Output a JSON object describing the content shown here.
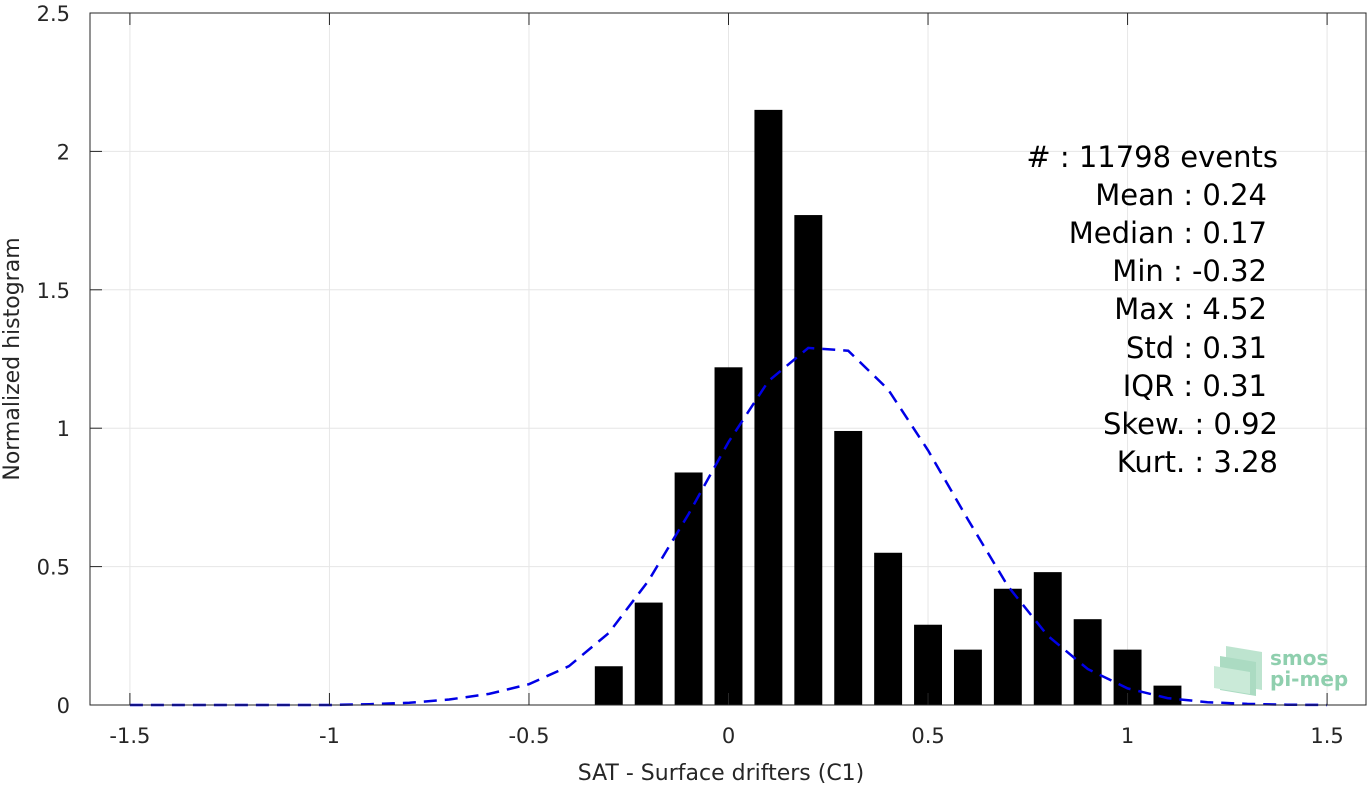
{
  "colors": {
    "bar": "#000000",
    "fit_line": "#0000e6",
    "grid": "#e6e6e6",
    "axis": "#262626",
    "logo": "#8fcfae"
  },
  "chart_data": {
    "type": "bar",
    "xlabel": "SAT - Surface drifters (C1)",
    "ylabel": "Normalized histogram",
    "xlim": [
      -1.6,
      1.6
    ],
    "ylim": [
      0,
      2.5
    ],
    "grid": true,
    "x_ticks": [
      -1.5,
      -1,
      -0.5,
      0,
      0.5,
      1,
      1.5
    ],
    "x_tick_labels": [
      "-1.5",
      "-1",
      "-0.5",
      "0",
      "0.5",
      "1",
      "1.5"
    ],
    "y_ticks": [
      0,
      0.5,
      1,
      1.5,
      2,
      2.5
    ],
    "y_tick_labels": [
      "0",
      "0.5",
      "1",
      "1.5",
      "2",
      "2.5"
    ],
    "bar_width": 0.07,
    "bars": {
      "x": [
        -0.3,
        -0.2,
        -0.1,
        0.0,
        0.1,
        0.2,
        0.3,
        0.4,
        0.5,
        0.6,
        0.7,
        0.8,
        0.9,
        1.0,
        1.1
      ],
      "values": [
        0.14,
        0.37,
        0.84,
        1.22,
        2.15,
        1.77,
        0.99,
        0.55,
        0.29,
        0.2,
        0.42,
        0.48,
        0.31,
        0.2,
        0.07
      ]
    },
    "fit_line": {
      "style": "dashed",
      "x": [
        -1.5,
        -1.4,
        -1.3,
        -1.2,
        -1.1,
        -1.0,
        -0.9,
        -0.8,
        -0.7,
        -0.6,
        -0.5,
        -0.4,
        -0.3,
        -0.2,
        -0.1,
        0.0,
        0.1,
        0.2,
        0.3,
        0.4,
        0.5,
        0.6,
        0.7,
        0.8,
        0.9,
        1.0,
        1.1,
        1.2,
        1.3,
        1.4,
        1.5
      ],
      "y": [
        0,
        0,
        0,
        0,
        0,
        0,
        0.003,
        0.008,
        0.02,
        0.04,
        0.075,
        0.14,
        0.26,
        0.45,
        0.69,
        0.95,
        1.17,
        1.29,
        1.28,
        1.14,
        0.92,
        0.67,
        0.43,
        0.25,
        0.13,
        0.06,
        0.025,
        0.01,
        0.004,
        0.001,
        0
      ]
    },
    "annotations": [
      "#  : 11798 events",
      "Mean : 0.24",
      "Median : 0.17",
      "Min : -0.32",
      "Max : 4.52",
      "Std : 0.31",
      "IQR : 0.31",
      "Skew. : 0.92",
      "Kurt. : 3.28"
    ]
  },
  "logo": {
    "line1": "smos",
    "line2": "pi-mep"
  }
}
